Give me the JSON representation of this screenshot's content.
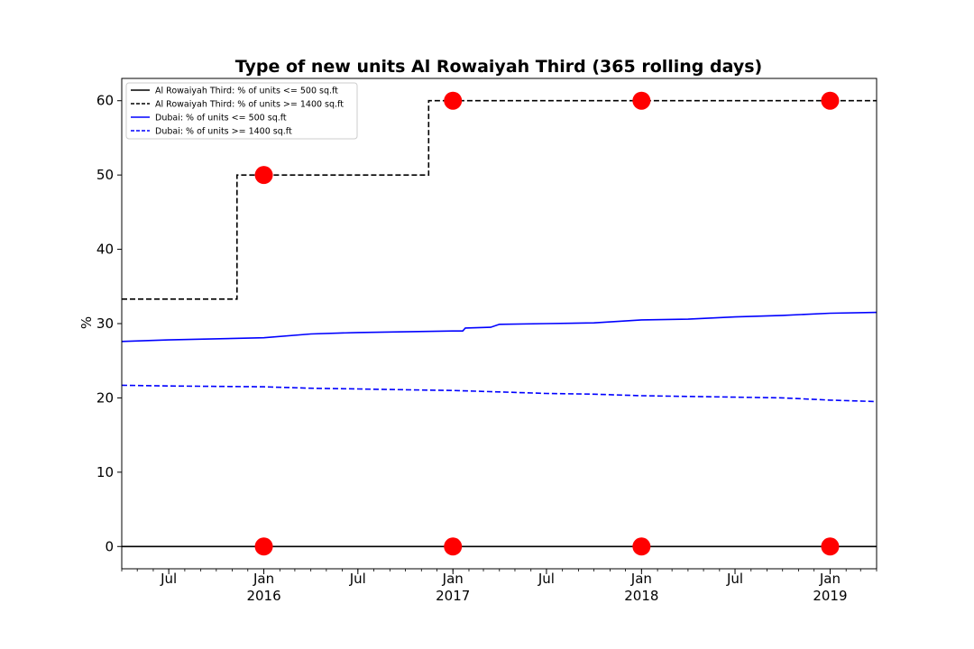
{
  "chart_data": {
    "type": "line",
    "title": "Type of new units Al Rowaiyah Third (365 rolling days)",
    "xlabel": "",
    "ylabel": "%",
    "xlim": [
      "2015-04-01",
      "2019-04-01"
    ],
    "ylim": [
      -3,
      63
    ],
    "y_ticks": [
      0,
      10,
      20,
      30,
      40,
      50,
      60
    ],
    "x_ticks": [
      {
        "date": "2015-07-01",
        "label": "Jul",
        "sub": ""
      },
      {
        "date": "2016-01-01",
        "label": "Jan",
        "sub": "2016"
      },
      {
        "date": "2016-07-01",
        "label": "Jul",
        "sub": ""
      },
      {
        "date": "2017-01-01",
        "label": "Jan",
        "sub": "2017"
      },
      {
        "date": "2017-07-01",
        "label": "Jul",
        "sub": ""
      },
      {
        "date": "2018-01-01",
        "label": "Jan",
        "sub": "2018"
      },
      {
        "date": "2018-07-01",
        "label": "Jul",
        "sub": ""
      },
      {
        "date": "2019-01-01",
        "label": "Jan",
        "sub": "2019"
      }
    ],
    "grid": false,
    "legend_position": "top-left",
    "series": [
      {
        "name": "Al Rowaiyah Third: % of units <= 500 sq.ft",
        "color": "#000000",
        "dashed": false,
        "step": true,
        "points": [
          [
            "2015-04-01",
            0
          ],
          [
            "2019-04-01",
            0
          ]
        ]
      },
      {
        "name": "Al Rowaiyah Third: % of units >= 1400 sq.ft",
        "color": "#000000",
        "dashed": true,
        "step": true,
        "points": [
          [
            "2015-04-01",
            33.3
          ],
          [
            "2015-11-10",
            50
          ],
          [
            "2016-11-15",
            60
          ],
          [
            "2019-04-01",
            60
          ]
        ]
      },
      {
        "name": "Dubai: % of units <= 500 sq.ft",
        "color": "#0000ff",
        "dashed": false,
        "step": false,
        "points": [
          [
            "2015-04-01",
            27.6
          ],
          [
            "2015-07-01",
            27.8
          ],
          [
            "2016-01-01",
            28.1
          ],
          [
            "2016-04-01",
            28.6
          ],
          [
            "2016-07-01",
            28.8
          ],
          [
            "2016-10-01",
            28.9
          ],
          [
            "2017-01-01",
            29.0
          ],
          [
            "2017-01-20",
            29.0
          ],
          [
            "2017-01-25",
            29.4
          ],
          [
            "2017-03-15",
            29.5
          ],
          [
            "2017-04-01",
            29.9
          ],
          [
            "2017-07-01",
            30.0
          ],
          [
            "2017-10-01",
            30.1
          ],
          [
            "2018-01-01",
            30.5
          ],
          [
            "2018-04-01",
            30.6
          ],
          [
            "2018-07-01",
            30.9
          ],
          [
            "2018-10-01",
            31.1
          ],
          [
            "2019-01-01",
            31.4
          ],
          [
            "2019-04-01",
            31.5
          ]
        ]
      },
      {
        "name": "Dubai: % of units >= 1400 sq.ft",
        "color": "#0000ff",
        "dashed": true,
        "step": false,
        "points": [
          [
            "2015-04-01",
            21.7
          ],
          [
            "2015-07-01",
            21.6
          ],
          [
            "2016-01-01",
            21.5
          ],
          [
            "2016-04-01",
            21.3
          ],
          [
            "2016-07-01",
            21.2
          ],
          [
            "2016-10-01",
            21.1
          ],
          [
            "2017-01-01",
            21.0
          ],
          [
            "2017-04-01",
            20.8
          ],
          [
            "2017-07-01",
            20.6
          ],
          [
            "2017-10-01",
            20.5
          ],
          [
            "2018-01-01",
            20.3
          ],
          [
            "2018-04-01",
            20.2
          ],
          [
            "2018-07-01",
            20.1
          ],
          [
            "2018-10-01",
            20.0
          ],
          [
            "2019-01-01",
            19.7
          ],
          [
            "2019-04-01",
            19.5
          ]
        ]
      }
    ],
    "markers": {
      "color": "#ff0000",
      "points": [
        [
          "2016-01-01",
          50
        ],
        [
          "2017-01-01",
          60
        ],
        [
          "2018-01-01",
          60
        ],
        [
          "2019-01-01",
          60
        ],
        [
          "2016-01-01",
          0
        ],
        [
          "2017-01-01",
          0
        ],
        [
          "2018-01-01",
          0
        ],
        [
          "2019-01-01",
          0
        ]
      ]
    }
  }
}
